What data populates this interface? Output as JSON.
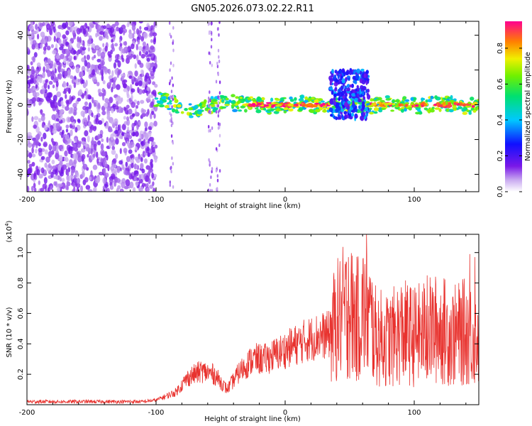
{
  "title": "GN05.2026.073.02.22.R11",
  "chart_data": [
    {
      "type": "heatmap",
      "title": "GN05.2026.073.02.22.R11",
      "xlabel": "Height of straight line (km)",
      "ylabel": "Frequency (Hz)",
      "xlim": [
        -200,
        150
      ],
      "ylim": [
        -50,
        48
      ],
      "xticks": [
        -200,
        -100,
        0,
        100
      ],
      "yticks": [
        -40,
        -20,
        0,
        20,
        40
      ],
      "xtick_labels": [
        "-200",
        "-100",
        "0",
        "100"
      ],
      "ytick_labels": [
        "-40",
        "-20",
        "0",
        "20",
        "40"
      ],
      "colorbar": {
        "label": "Normalized spectral amplitude",
        "range": [
          0.0,
          0.95
        ],
        "ticks": [
          0.0,
          0.2,
          0.4,
          0.6,
          0.8
        ],
        "tick_labels": [
          "0.0",
          "0.2",
          "0.4",
          "0.6",
          "0.8"
        ]
      },
      "regions": [
        {
          "name": "noise",
          "x": [
            -200,
            -100
          ],
          "y": [
            -50,
            48
          ],
          "amplitude": 0.12
        },
        {
          "name": "signal-band",
          "x": [
            -100,
            150
          ],
          "y": [
            -3,
            3
          ],
          "amplitude": 0.6
        },
        {
          "name": "peak-band",
          "x": [
            -30,
            35
          ],
          "y": [
            -1,
            1
          ],
          "amplitude": 0.92
        },
        {
          "name": "scatter-blob",
          "x": [
            35,
            65
          ],
          "y": [
            -8,
            20
          ],
          "amplitude": 0.3
        },
        {
          "name": "peak-band-2",
          "x": [
            65,
            150
          ],
          "y": [
            -1,
            1
          ],
          "amplitude": 0.85
        }
      ]
    },
    {
      "type": "line",
      "xlabel": "Height of straight line (km)",
      "ylabel": "SNR (10 * v/v)",
      "yscale_note": "(x10^4)",
      "yscale_base": "(x10",
      "yscale_exp": "4",
      "yscale_close": ")",
      "xlim": [
        -200,
        150
      ],
      "ylim": [
        0.0,
        1.12
      ],
      "xticks": [
        -200,
        -100,
        0,
        100
      ],
      "yticks": [
        0.2,
        0.4,
        0.6,
        0.8,
        1.0
      ],
      "xtick_labels": [
        "-200",
        "-100",
        "0",
        "100"
      ],
      "ytick_labels": [
        "0.2",
        "0.4",
        "0.6",
        "0.8",
        "1.0"
      ],
      "series": [
        {
          "name": "SNR",
          "color": "#e8322e",
          "envelope": {
            "x": [
              -200,
              -110,
              -100,
              -85,
              -75,
              -65,
              -55,
              -45,
              -35,
              -25,
              -15,
              -5,
              5,
              15,
              25,
              35,
              40,
              45,
              50,
              55,
              60,
              65,
              70,
              80,
              90,
              100,
              110,
              120,
              130,
              140,
              150
            ],
            "y": [
              0.02,
              0.02,
              0.03,
              0.08,
              0.18,
              0.22,
              0.2,
              0.1,
              0.22,
              0.3,
              0.3,
              0.34,
              0.38,
              0.42,
              0.45,
              0.46,
              0.55,
              0.6,
              0.62,
              0.55,
              0.62,
              0.58,
              0.45,
              0.42,
              0.48,
              0.45,
              0.48,
              0.5,
              0.45,
              0.48,
              0.45
            ]
          },
          "peaks": [
            {
              "x": 49,
              "y": 0.97
            },
            {
              "x": 55,
              "y": 0.85
            },
            {
              "x": 63,
              "y": 1.12
            },
            {
              "x": 110,
              "y": 0.85
            },
            {
              "x": 143,
              "y": 0.99
            },
            {
              "x": 147,
              "y": 0.97
            }
          ]
        }
      ]
    }
  ]
}
